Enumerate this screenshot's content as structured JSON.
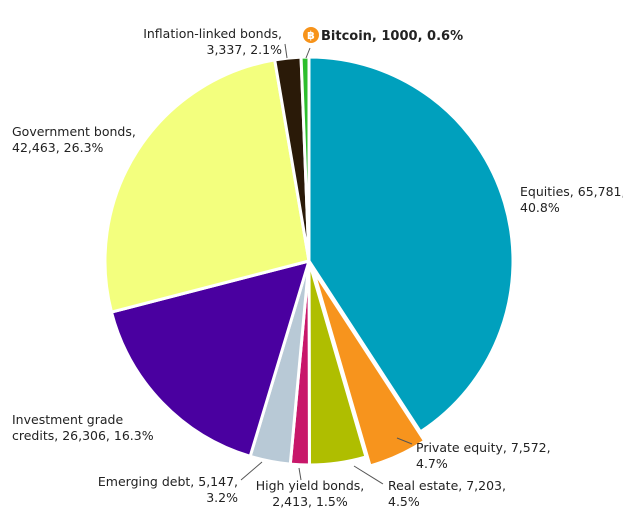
{
  "chart_data": {
    "type": "pie",
    "title": "",
    "slices": [
      {
        "label": "Equities",
        "value": 65781,
        "percent": "40.8%",
        "color": "#00A0BD",
        "lines": [
          "Equities, 65,781,",
          "40.8%"
        ],
        "explode": 0
      },
      {
        "label": "Private equity",
        "value": 7572,
        "percent": "4.7%",
        "color": "#F7941D",
        "lines": [
          "Private equity, 7,572,",
          "4.7%"
        ],
        "explode": 10
      },
      {
        "label": "Real estate",
        "value": 7203,
        "percent": "4.5%",
        "color": "#AFBE00",
        "lines": [
          "Real estate, 7,203,",
          "4.5%"
        ],
        "explode": 0
      },
      {
        "label": "High yield bonds",
        "value": 2413,
        "percent": "1.5%",
        "color": "#C8176A",
        "lines": [
          "High yield bonds,",
          "2,413, 1.5%"
        ],
        "explode": 0
      },
      {
        "label": "Emerging debt",
        "value": 5147,
        "percent": "3.2%",
        "color": "#B8C9D6",
        "lines": [
          "Emerging debt, 5,147,",
          "3.2%"
        ],
        "explode": 0
      },
      {
        "label": "Investment grade credits",
        "value": 26306,
        "percent": "16.3%",
        "color": "#4A00A0",
        "lines": [
          "Investment grade",
          "credits, 26,306, 16.3%"
        ],
        "explode": 0
      },
      {
        "label": "Government bonds",
        "value": 42463,
        "percent": "26.3%",
        "color": "#F3FF7E",
        "lines": [
          "Government bonds,",
          "42,463, 26.3%"
        ],
        "explode": 0
      },
      {
        "label": "Inflation-linked bonds",
        "value": 3337,
        "percent": "2.1%",
        "color": "#2A1A08",
        "lines": [
          "Inflation-linked bonds,",
          "3,337, 2.1%"
        ],
        "explode": 0
      },
      {
        "label": "Bitcoin",
        "value": 1000,
        "percent": "0.6%",
        "color": "#2DBE2D",
        "lines": [
          "Bitcoin, 1000, 0.6%"
        ],
        "explode": 0,
        "bold": true,
        "icon": "bitcoin-icon",
        "icon_color": "#F7931A"
      }
    ]
  }
}
